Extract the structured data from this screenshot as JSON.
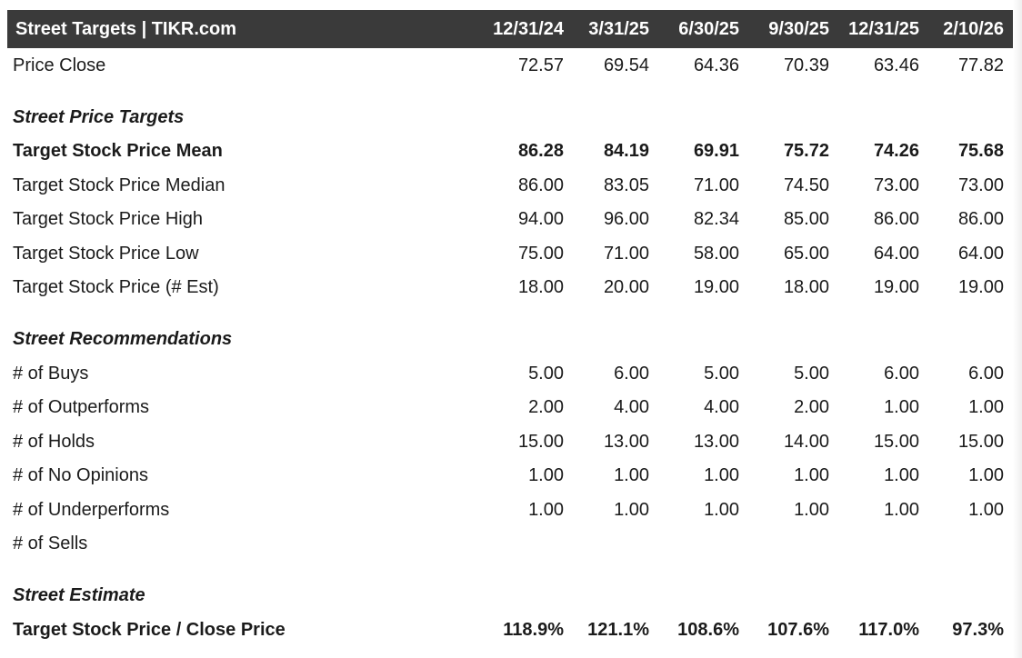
{
  "table": {
    "title": "Street Targets | TIKR.com",
    "columns": [
      "12/31/24",
      "3/31/25",
      "6/30/25",
      "9/30/25",
      "12/31/25",
      "2/10/26"
    ],
    "price_close": {
      "label": "Price Close",
      "values": [
        "72.57",
        "69.54",
        "64.36",
        "70.39",
        "63.46",
        "77.82"
      ]
    },
    "sections": [
      {
        "heading": "Street Price Targets",
        "rows": [
          {
            "label": "Target Stock Price Mean",
            "bold": true,
            "values": [
              "86.28",
              "84.19",
              "69.91",
              "75.72",
              "74.26",
              "75.68"
            ]
          },
          {
            "label": "Target Stock Price Median",
            "bold": false,
            "values": [
              "86.00",
              "83.05",
              "71.00",
              "74.50",
              "73.00",
              "73.00"
            ]
          },
          {
            "label": "Target Stock Price High",
            "bold": false,
            "values": [
              "94.00",
              "96.00",
              "82.34",
              "85.00",
              "86.00",
              "86.00"
            ]
          },
          {
            "label": "Target Stock Price Low",
            "bold": false,
            "values": [
              "75.00",
              "71.00",
              "58.00",
              "65.00",
              "64.00",
              "64.00"
            ]
          },
          {
            "label": "Target Stock Price (# Est)",
            "bold": false,
            "values": [
              "18.00",
              "20.00",
              "19.00",
              "18.00",
              "19.00",
              "19.00"
            ]
          }
        ]
      },
      {
        "heading": "Street Recommendations",
        "rows": [
          {
            "label": "# of Buys",
            "bold": false,
            "values": [
              "5.00",
              "6.00",
              "5.00",
              "5.00",
              "6.00",
              "6.00"
            ]
          },
          {
            "label": "# of Outperforms",
            "bold": false,
            "values": [
              "2.00",
              "4.00",
              "4.00",
              "2.00",
              "1.00",
              "1.00"
            ]
          },
          {
            "label": "# of Holds",
            "bold": false,
            "values": [
              "15.00",
              "13.00",
              "13.00",
              "14.00",
              "15.00",
              "15.00"
            ]
          },
          {
            "label": "# of No Opinions",
            "bold": false,
            "values": [
              "1.00",
              "1.00",
              "1.00",
              "1.00",
              "1.00",
              "1.00"
            ]
          },
          {
            "label": "# of Underperforms",
            "bold": false,
            "values": [
              "1.00",
              "1.00",
              "1.00",
              "1.00",
              "1.00",
              "1.00"
            ]
          },
          {
            "label": "# of Sells",
            "bold": false,
            "values": [
              "",
              "",
              "",
              "",
              "",
              ""
            ]
          }
        ]
      },
      {
        "heading": "Street Estimate",
        "rows": [
          {
            "label": "Target Stock Price / Close Price",
            "bold": true,
            "values": [
              "118.9%",
              "121.1%",
              "108.6%",
              "107.6%",
              "117.0%",
              "97.3%"
            ]
          }
        ]
      }
    ]
  }
}
